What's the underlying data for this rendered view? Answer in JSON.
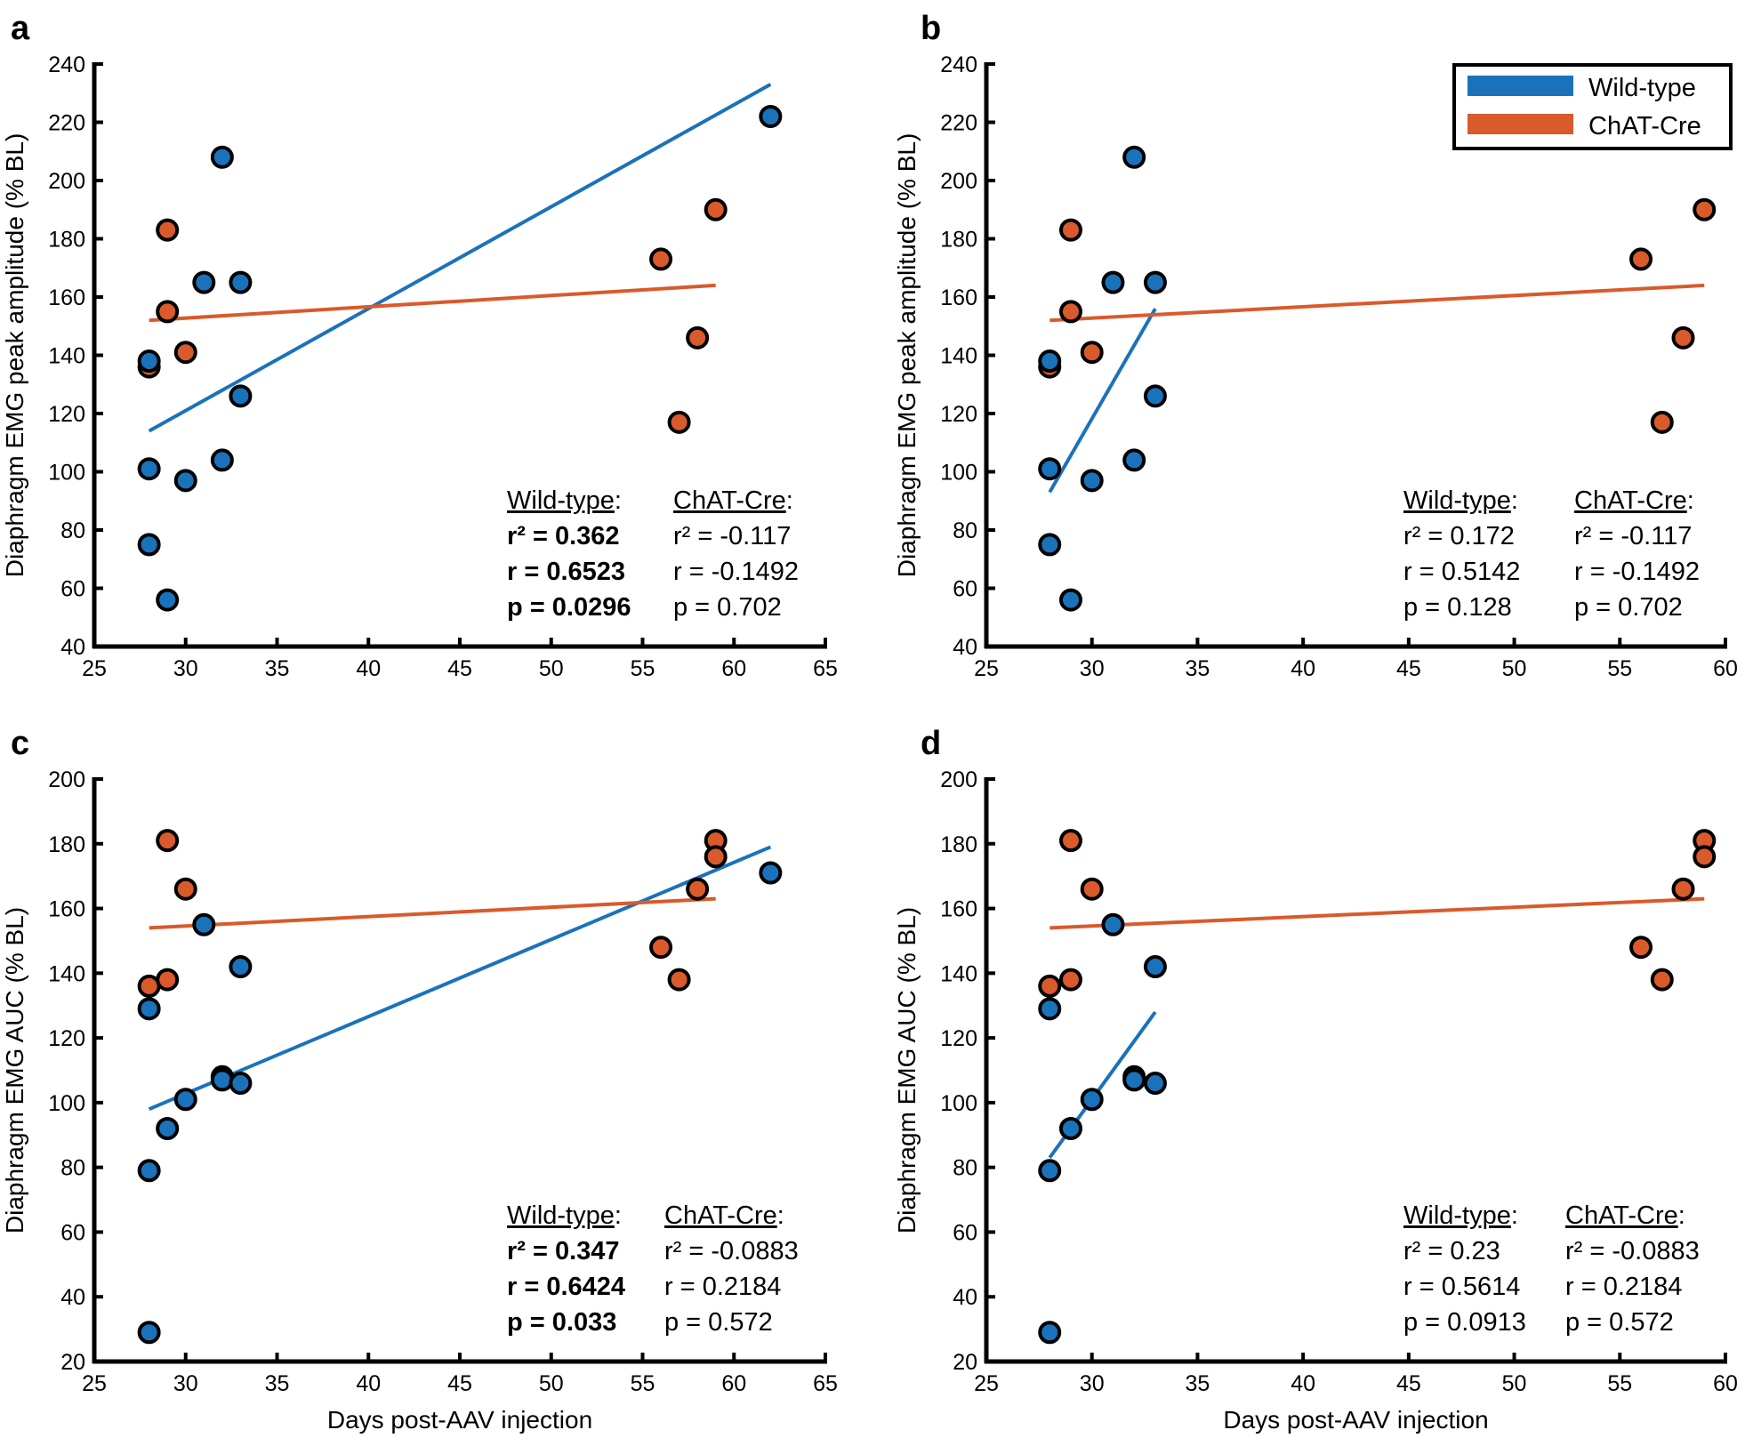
{
  "colors": {
    "wild_type": "#1a72bb",
    "chat_cre": "#d95a2b",
    "axis": "#000000"
  },
  "legend": {
    "items": [
      {
        "label": "Wild-type",
        "color": "#1a72bb"
      },
      {
        "label": "ChAT-Cre",
        "color": "#d95a2b"
      }
    ],
    "placement": "top-right of panel b"
  },
  "chart_data": [
    {
      "panel": "a",
      "type": "scatter",
      "xlabel": "",
      "ylabel": "Diaphragm EMG peak amplitude (% BL)",
      "xlim": [
        25,
        65
      ],
      "ylim": [
        40,
        240
      ],
      "xticks": [
        25,
        30,
        35,
        40,
        45,
        50,
        55,
        60,
        65
      ],
      "yticks": [
        40,
        60,
        80,
        100,
        120,
        140,
        160,
        180,
        200,
        220,
        240
      ],
      "series": [
        {
          "name": "Wild-type",
          "x": [
            28,
            28,
            28,
            29,
            30,
            31,
            32,
            32,
            33,
            33,
            62
          ],
          "y": [
            138,
            101,
            75,
            56,
            97,
            165,
            208,
            104,
            165,
            126,
            222
          ],
          "fit": {
            "x": [
              28,
              62
            ],
            "y": [
              114,
              233
            ]
          }
        },
        {
          "name": "ChAT-Cre",
          "x": [
            28,
            29,
            29,
            30,
            56,
            57,
            58,
            59
          ],
          "y": [
            136,
            183,
            155,
            141,
            173,
            117,
            146,
            190
          ],
          "fit": {
            "x": [
              28,
              59
            ],
            "y": [
              152,
              164
            ]
          }
        }
      ],
      "stats": {
        "wild_type": {
          "header": "Wild-type",
          "r2": "r² = 0.362",
          "r": "r = 0.6523",
          "p": "p = 0.0296",
          "bold": true
        },
        "chat_cre": {
          "header": "ChAT-Cre",
          "r2": "r² = -0.117",
          "r": "r = -0.1492",
          "p": "p = 0.702",
          "bold": false
        }
      }
    },
    {
      "panel": "b",
      "type": "scatter",
      "xlabel": "",
      "ylabel": "Diaphragm EMG peak amplitude (% BL)",
      "xlim": [
        25,
        60
      ],
      "ylim": [
        40,
        240
      ],
      "xticks": [
        25,
        30,
        35,
        40,
        45,
        50,
        55,
        60
      ],
      "yticks": [
        40,
        60,
        80,
        100,
        120,
        140,
        160,
        180,
        200,
        220,
        240
      ],
      "series": [
        {
          "name": "Wild-type",
          "x": [
            28,
            28,
            28,
            29,
            30,
            31,
            32,
            32,
            33,
            33
          ],
          "y": [
            138,
            101,
            75,
            56,
            97,
            165,
            208,
            104,
            165,
            126
          ],
          "fit": {
            "x": [
              28,
              33
            ],
            "y": [
              93,
              156
            ]
          }
        },
        {
          "name": "ChAT-Cre",
          "x": [
            28,
            29,
            29,
            30,
            56,
            57,
            58,
            59
          ],
          "y": [
            136,
            183,
            155,
            141,
            173,
            117,
            146,
            190
          ],
          "fit": {
            "x": [
              28,
              59
            ],
            "y": [
              152,
              164
            ]
          }
        }
      ],
      "stats": {
        "wild_type": {
          "header": "Wild-type",
          "r2": "r² = 0.172",
          "r": "r = 0.5142",
          "p": "p = 0.128",
          "bold": false
        },
        "chat_cre": {
          "header": "ChAT-Cre",
          "r2": "r² = -0.117",
          "r": "r = -0.1492",
          "p": "p = 0.702",
          "bold": false
        }
      }
    },
    {
      "panel": "c",
      "type": "scatter",
      "xlabel": "Days post-AAV injection",
      "ylabel": "Diaphragm EMG AUC (% BL)",
      "xlim": [
        25,
        65
      ],
      "ylim": [
        20,
        200
      ],
      "xticks": [
        25,
        30,
        35,
        40,
        45,
        50,
        55,
        60,
        65
      ],
      "yticks": [
        20,
        40,
        60,
        80,
        100,
        120,
        140,
        160,
        180,
        200
      ],
      "series": [
        {
          "name": "Wild-type",
          "x": [
            28,
            28,
            28,
            29,
            30,
            31,
            32,
            32,
            33,
            33,
            62
          ],
          "y": [
            129,
            79,
            29,
            92,
            101,
            155,
            108,
            107,
            142,
            106,
            171
          ],
          "fit": {
            "x": [
              28,
              62
            ],
            "y": [
              98,
              179
            ]
          }
        },
        {
          "name": "ChAT-Cre",
          "x": [
            28,
            29,
            29,
            30,
            56,
            57,
            58,
            59,
            59
          ],
          "y": [
            136,
            181,
            138,
            166,
            148,
            138,
            166,
            181,
            176
          ],
          "fit": {
            "x": [
              28,
              59
            ],
            "y": [
              154,
              163
            ]
          }
        }
      ],
      "stats": {
        "wild_type": {
          "header": "Wild-type",
          "r2": "r² = 0.347",
          "r": "r = 0.6424",
          "p": "p = 0.033",
          "bold": true
        },
        "chat_cre": {
          "header": "ChAT-Cre",
          "r2": "r² = -0.0883",
          "r": "r = 0.2184",
          "p": "p = 0.572",
          "bold": false
        }
      }
    },
    {
      "panel": "d",
      "type": "scatter",
      "xlabel": "Days post-AAV injection",
      "ylabel": "Diaphragm EMG AUC (% BL)",
      "xlim": [
        25,
        60
      ],
      "ylim": [
        20,
        200
      ],
      "xticks": [
        25,
        30,
        35,
        40,
        45,
        50,
        55,
        60
      ],
      "yticks": [
        20,
        40,
        60,
        80,
        100,
        120,
        140,
        160,
        180,
        200
      ],
      "series": [
        {
          "name": "Wild-type",
          "x": [
            28,
            28,
            28,
            29,
            30,
            31,
            32,
            32,
            33,
            33
          ],
          "y": [
            129,
            79,
            29,
            92,
            101,
            155,
            108,
            107,
            142,
            106
          ],
          "fit": {
            "x": [
              28,
              33
            ],
            "y": [
              83,
              128
            ]
          }
        },
        {
          "name": "ChAT-Cre",
          "x": [
            28,
            29,
            29,
            30,
            56,
            57,
            58,
            59,
            59
          ],
          "y": [
            136,
            181,
            138,
            166,
            148,
            138,
            166,
            181,
            176
          ],
          "fit": {
            "x": [
              28,
              59
            ],
            "y": [
              154,
              163
            ]
          }
        }
      ],
      "stats": {
        "wild_type": {
          "header": "Wild-type",
          "r2": "r² = 0.23",
          "r": "r = 0.5614",
          "p": "p = 0.0913",
          "bold": false
        },
        "chat_cre": {
          "header": "ChAT-Cre",
          "r2": "r² = -0.0883",
          "r": "r = 0.2184",
          "p": "p = 0.572",
          "bold": false
        }
      }
    }
  ]
}
